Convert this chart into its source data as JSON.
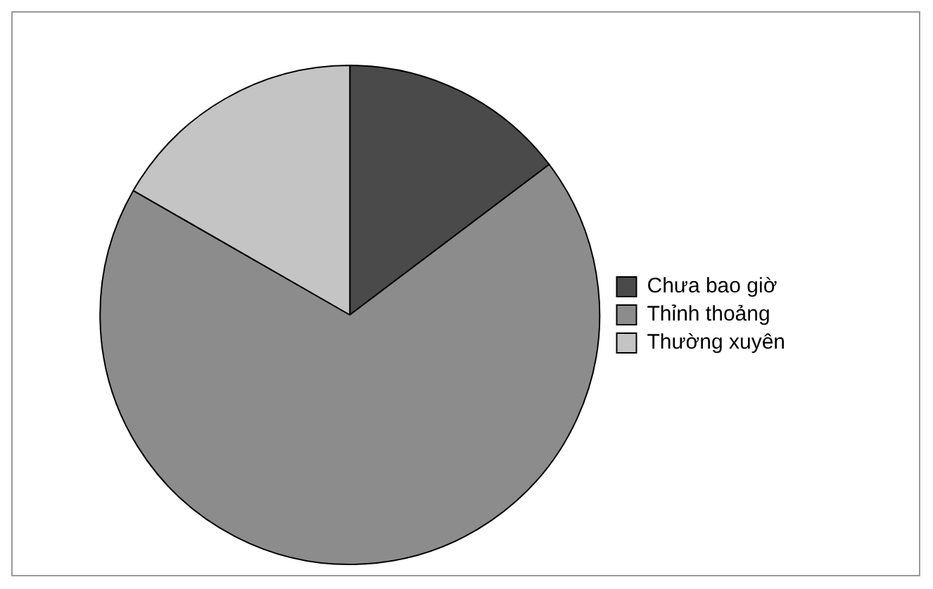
{
  "chart_data": {
    "type": "pie",
    "categories": [
      "Chưa bao giờ",
      "Thỉnh thoảng",
      "Thường xuyên"
    ],
    "values": [
      14.7,
      68.6,
      16.7
    ],
    "colors": [
      "#4a4a4a",
      "#8c8c8c",
      "#c4c4c4"
    ],
    "legend": "right"
  }
}
